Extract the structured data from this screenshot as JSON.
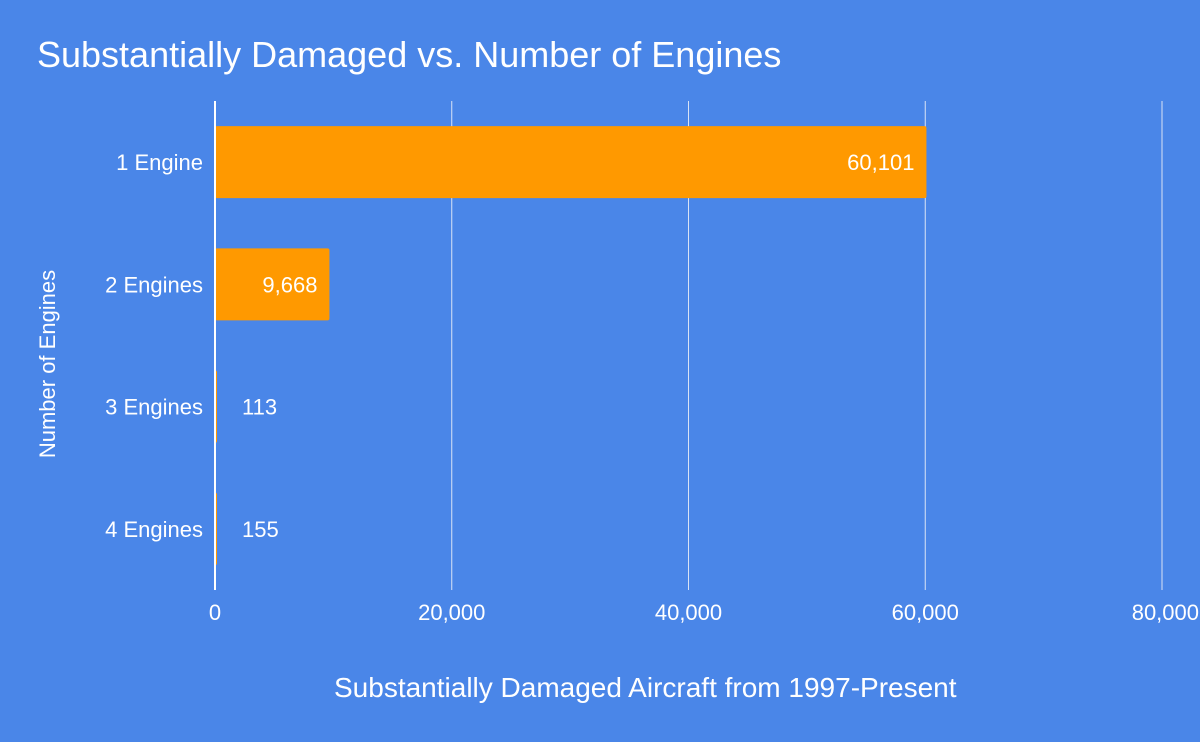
{
  "chart_data": {
    "type": "bar",
    "orientation": "horizontal",
    "title": "Substantially Damaged vs. Number of Engines",
    "xlabel": "Substantially Damaged Aircraft from 1997-Present",
    "ylabel": "Number of Engines",
    "categories": [
      "1 Engine",
      "2 Engines",
      "3 Engines",
      "4 Engines"
    ],
    "values": [
      60101,
      9668,
      113,
      155
    ],
    "value_labels": [
      "60,101",
      "9,668",
      "113",
      "155"
    ],
    "xlim": [
      0,
      80000
    ],
    "xticks": [
      0,
      20000,
      40000,
      60000,
      80000
    ],
    "xtick_labels": [
      "0",
      "20,000",
      "40,000",
      "60,000",
      "80,000"
    ],
    "grid": true,
    "legend": "none",
    "colors": {
      "background": "#4a86e8",
      "bar": "#ff9900",
      "text": "#ffffff",
      "gridline": "#d9e3f5",
      "axis": "#ffffff"
    }
  }
}
